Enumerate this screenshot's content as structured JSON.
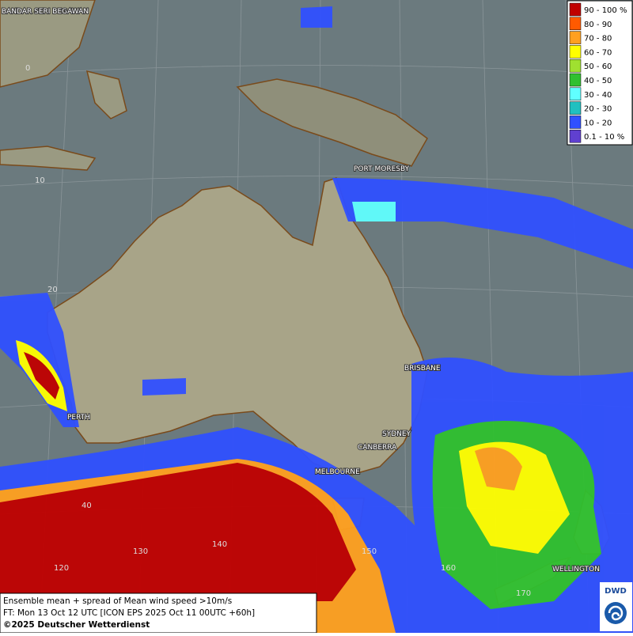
{
  "map": {
    "legend": [
      {
        "label": "90 - 100 %",
        "color": "#c00000"
      },
      {
        "label": "80 - 90",
        "color": "#ff5a00"
      },
      {
        "label": "70 - 80",
        "color": "#ffa020"
      },
      {
        "label": "60 - 70",
        "color": "#ffff00"
      },
      {
        "label": "50 - 60",
        "color": "#a0e030"
      },
      {
        "label": "40 - 50",
        "color": "#30c030"
      },
      {
        "label": "30 - 40",
        "color": "#60ffff"
      },
      {
        "label": "20 - 30",
        "color": "#20c0c0"
      },
      {
        "label": "10 - 20",
        "color": "#3050ff"
      },
      {
        "label": "0.1 - 10 %",
        "color": "#6040d0"
      }
    ],
    "cities": [
      "BANDAR SERI BEGAWAN",
      "PORT MORESBY",
      "BRISBANE",
      "SYDNEY",
      "CANBERRA",
      "MELBOURNE",
      "PERTH",
      "WELLINGTON"
    ],
    "grid_labels": [
      "0",
      "10",
      "20",
      "40",
      "120",
      "130",
      "140",
      "150",
      "160",
      "170"
    ],
    "footer": [
      "Ensemble mean + spread of Mean wind speed >10m/s",
      "FT: Mon 13 Oct 12 UTC [ICON EPS 2025 Oct 11 00UTC +60h]",
      "©2025 Deutscher Wetterdienst"
    ],
    "logo": "DWD"
  }
}
